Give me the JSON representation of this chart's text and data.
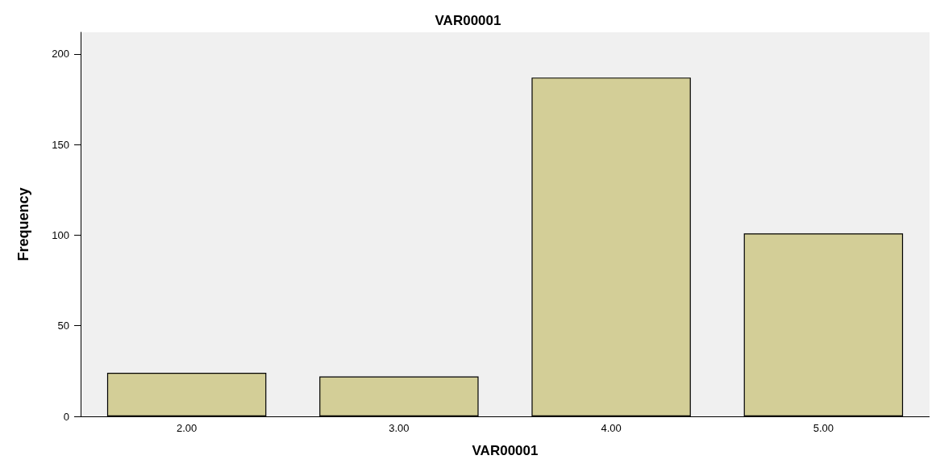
{
  "chart_data": {
    "type": "bar",
    "title": "VAR00001",
    "xlabel": "VAR00001",
    "ylabel": "Frequency",
    "categories": [
      "2.00",
      "3.00",
      "4.00",
      "5.00"
    ],
    "values": [
      24,
      22,
      187,
      101
    ],
    "color": "#d3ce97",
    "ylim": [
      0,
      212
    ],
    "yticks": [
      0,
      50,
      100,
      150,
      200
    ],
    "grid": false
  }
}
